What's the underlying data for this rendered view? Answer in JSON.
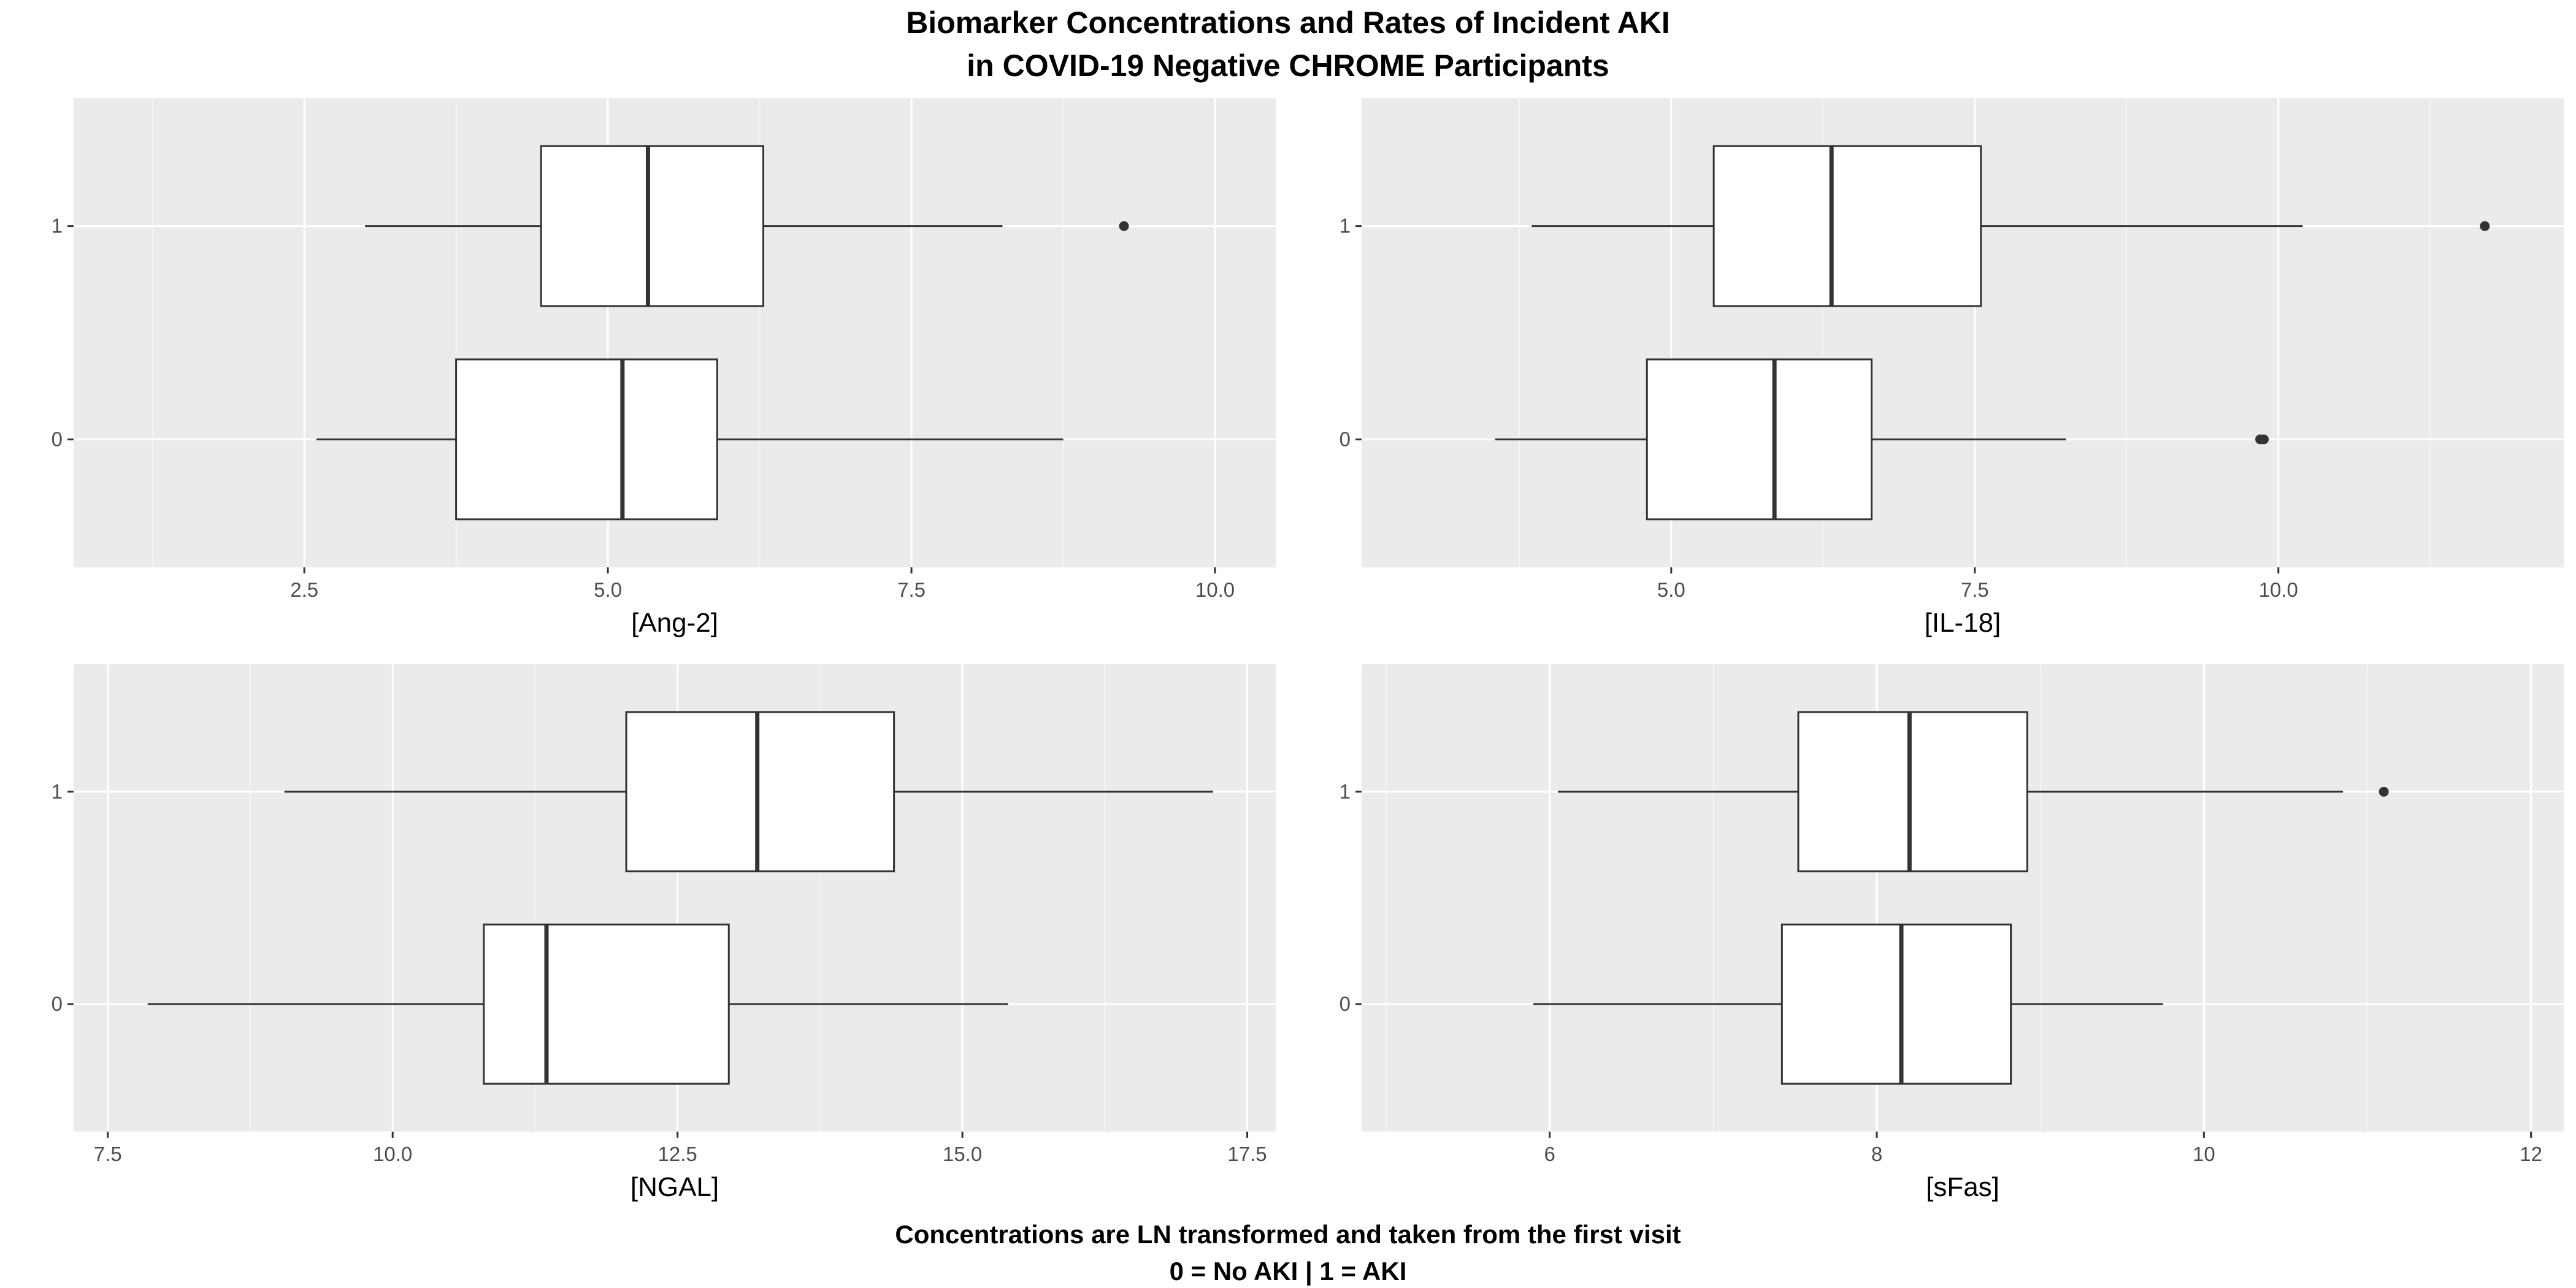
{
  "title": [
    "Biomarker Concentrations and Rates of Incident AKI",
    "in COVID-19 Negative CHROME Participants"
  ],
  "caption": [
    "Concentrations are LN transformed and taken from the first visit",
    "0 = No AKI | 1 = AKI"
  ],
  "colors": {
    "panel_bg": "#ebebeb",
    "grid_major": "#ffffff",
    "box_fill": "#ffffff",
    "box_line": "#333333",
    "tick_text": "#4d4d4d"
  },
  "chart_data": [
    {
      "type": "boxplot",
      "orientation": "horizontal",
      "xlabel": "[Ang-2]",
      "ylabel": "",
      "xlim": [
        0.6,
        10.5
      ],
      "xticks": [
        2.5,
        5.0,
        7.5,
        10.0
      ],
      "xtick_labels": [
        "2.5",
        "5.0",
        "7.5",
        "10.0"
      ],
      "categories": [
        "0",
        "1"
      ],
      "boxes": [
        {
          "category": "0",
          "whisker_low": 2.6,
          "q1": 3.75,
          "median": 5.12,
          "q3": 5.9,
          "whisker_high": 8.75,
          "outliers": []
        },
        {
          "category": "1",
          "whisker_low": 3.0,
          "q1": 4.45,
          "median": 5.33,
          "q3": 6.28,
          "whisker_high": 8.25,
          "outliers": [
            9.25
          ]
        }
      ]
    },
    {
      "type": "boxplot",
      "orientation": "horizontal",
      "xlabel": "[IL-18]",
      "ylabel": "",
      "xlim": [
        2.45,
        12.35
      ],
      "xticks": [
        5.0,
        7.5,
        10.0
      ],
      "xtick_labels": [
        "5.0",
        "7.5",
        "10.0"
      ],
      "categories": [
        "0",
        "1"
      ],
      "boxes": [
        {
          "category": "0",
          "whisker_low": 3.55,
          "q1": 4.8,
          "median": 5.85,
          "q3": 6.65,
          "whisker_high": 8.25,
          "outliers": [
            9.85,
            9.88
          ]
        },
        {
          "category": "1",
          "whisker_low": 3.85,
          "q1": 5.35,
          "median": 6.32,
          "q3": 7.55,
          "whisker_high": 10.2,
          "outliers": [
            11.7
          ]
        }
      ]
    },
    {
      "type": "boxplot",
      "orientation": "horizontal",
      "xlabel": "[NGAL]",
      "ylabel": "",
      "xlim": [
        7.2,
        17.75
      ],
      "xticks": [
        7.5,
        10.0,
        12.5,
        15.0,
        17.5
      ],
      "xtick_labels": [
        "7.5",
        "10.0",
        "12.5",
        "15.0",
        "17.5"
      ],
      "categories": [
        "0",
        "1"
      ],
      "boxes": [
        {
          "category": "0",
          "whisker_low": 7.85,
          "q1": 10.8,
          "median": 11.35,
          "q3": 12.95,
          "whisker_high": 15.4,
          "outliers": []
        },
        {
          "category": "1",
          "whisker_low": 9.05,
          "q1": 12.05,
          "median": 13.2,
          "q3": 14.4,
          "whisker_high": 17.2,
          "outliers": []
        }
      ]
    },
    {
      "type": "boxplot",
      "orientation": "horizontal",
      "xlabel": "[sFas]",
      "ylabel": "",
      "xlim": [
        4.85,
        12.2
      ],
      "xticks": [
        6,
        8,
        10,
        12
      ],
      "xtick_labels": [
        "6",
        "8",
        "10",
        "12"
      ],
      "categories": [
        "0",
        "1"
      ],
      "boxes": [
        {
          "category": "0",
          "whisker_low": 5.9,
          "q1": 7.42,
          "median": 8.15,
          "q3": 8.82,
          "whisker_high": 9.75,
          "outliers": []
        },
        {
          "category": "1",
          "whisker_low": 6.05,
          "q1": 7.52,
          "median": 8.2,
          "q3": 8.92,
          "whisker_high": 10.85,
          "outliers": [
            11.1
          ]
        }
      ]
    }
  ]
}
